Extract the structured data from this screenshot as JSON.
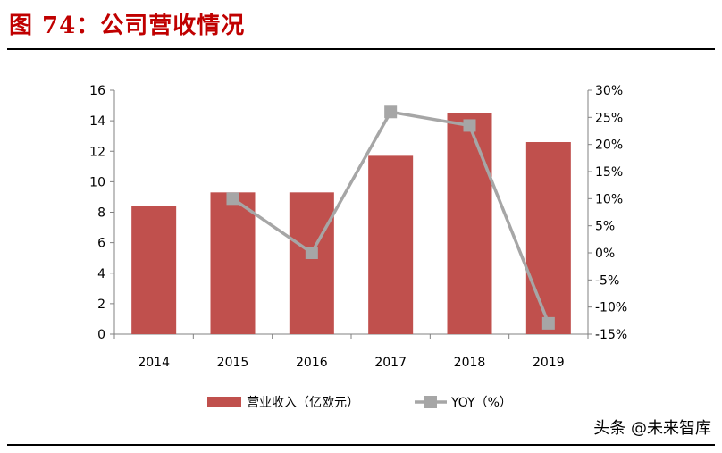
{
  "figure": {
    "title": "图 74：公司营收情况",
    "watermark": "头条 @未来智库"
  },
  "colors": {
    "title": "#c00000",
    "bar": "#c0504d",
    "line": "#a6a6a6",
    "axis": "#808080"
  },
  "chart_data": {
    "type": "bar",
    "categories": [
      "2014",
      "2015",
      "2016",
      "2017",
      "2018",
      "2019"
    ],
    "series": [
      {
        "name": "营业收入（亿欧元）",
        "type": "bar",
        "axis": "left",
        "values": [
          8.4,
          9.3,
          9.3,
          11.7,
          14.5,
          12.6
        ]
      },
      {
        "name": "YOY（%）",
        "type": "line",
        "axis": "right",
        "values": [
          null,
          10.0,
          0.0,
          26.0,
          23.5,
          -13.0
        ]
      }
    ],
    "left_axis": {
      "ylim": [
        0,
        16
      ],
      "ticks": [
        "0",
        "2",
        "4",
        "6",
        "8",
        "10",
        "12",
        "14",
        "16"
      ]
    },
    "right_axis": {
      "ylim": [
        -15,
        30
      ],
      "ticks": [
        "-15%",
        "-10%",
        "-5%",
        "0%",
        "5%",
        "10%",
        "15%",
        "20%",
        "25%",
        "30%"
      ]
    },
    "legend": "bottom",
    "grid": false
  }
}
